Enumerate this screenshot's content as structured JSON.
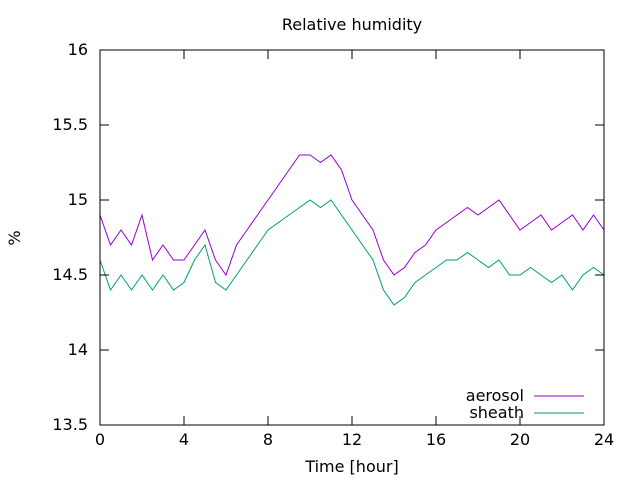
{
  "chart_data": {
    "type": "line",
    "title": "Relative humidity",
    "xlabel": "Time [hour]",
    "ylabel": "%",
    "xlim": [
      0,
      24
    ],
    "ylim": [
      13.5,
      16
    ],
    "xticks": [
      "0",
      "4",
      "8",
      "12",
      "16",
      "20",
      "24"
    ],
    "yticks": [
      "13.5",
      "14",
      "14.5",
      "15",
      "15.5",
      "16"
    ],
    "legend_position": "bottom-right",
    "grid": false,
    "series": [
      {
        "name": "aerosol",
        "color": "#9400d3",
        "x": [
          0,
          0.5,
          1,
          1.5,
          2,
          2.5,
          3,
          3.5,
          4,
          4.5,
          5,
          5.5,
          6,
          6.5,
          7,
          7.5,
          8,
          8.5,
          9,
          9.5,
          10,
          10.5,
          11,
          11.5,
          12,
          12.5,
          13,
          13.5,
          14,
          14.5,
          15,
          15.5,
          16,
          16.5,
          17,
          17.5,
          18,
          18.5,
          19,
          19.5,
          20,
          20.5,
          21,
          21.5,
          22,
          22.5,
          23,
          23.5,
          24
        ],
        "values": [
          14.9,
          14.7,
          14.8,
          14.7,
          14.9,
          14.6,
          14.7,
          14.6,
          14.6,
          14.7,
          14.8,
          14.6,
          14.5,
          14.7,
          14.8,
          14.9,
          15.0,
          15.1,
          15.2,
          15.3,
          15.3,
          15.25,
          15.3,
          15.2,
          15.0,
          14.9,
          14.8,
          14.6,
          14.5,
          14.55,
          14.65,
          14.7,
          14.8,
          14.85,
          14.9,
          14.95,
          14.9,
          14.95,
          15.0,
          14.9,
          14.8,
          14.85,
          14.9,
          14.8,
          14.85,
          14.9,
          14.8,
          14.9,
          14.8
        ]
      },
      {
        "name": "sheath",
        "color": "#009e73",
        "x": [
          0,
          0.5,
          1,
          1.5,
          2,
          2.5,
          3,
          3.5,
          4,
          4.5,
          5,
          5.5,
          6,
          6.5,
          7,
          7.5,
          8,
          8.5,
          9,
          9.5,
          10,
          10.5,
          11,
          11.5,
          12,
          12.5,
          13,
          13.5,
          14,
          14.5,
          15,
          15.5,
          16,
          16.5,
          17,
          17.5,
          18,
          18.5,
          19,
          19.5,
          20,
          20.5,
          21,
          21.5,
          22,
          22.5,
          23,
          23.5,
          24
        ],
        "values": [
          14.6,
          14.4,
          14.5,
          14.4,
          14.5,
          14.4,
          14.5,
          14.4,
          14.45,
          14.6,
          14.7,
          14.45,
          14.4,
          14.5,
          14.6,
          14.7,
          14.8,
          14.85,
          14.9,
          14.95,
          15.0,
          14.95,
          15.0,
          14.9,
          14.8,
          14.7,
          14.6,
          14.4,
          14.3,
          14.35,
          14.45,
          14.5,
          14.55,
          14.6,
          14.6,
          14.65,
          14.6,
          14.55,
          14.6,
          14.5,
          14.5,
          14.55,
          14.5,
          14.45,
          14.5,
          14.4,
          14.5,
          14.55,
          14.5
        ]
      }
    ]
  }
}
